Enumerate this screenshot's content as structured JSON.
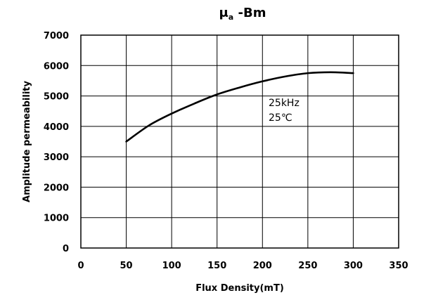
{
  "chart_data": {
    "type": "line",
    "title": "μₐ -Bm",
    "title_main": "μ",
    "title_sub": "a",
    "title_tail": " -Bm",
    "xlabel": "Flux Density(mT)",
    "ylabel": "Amplitude permeability",
    "xlim": [
      0,
      350
    ],
    "ylim": [
      0,
      7000
    ],
    "x_ticks": [
      0,
      50,
      100,
      150,
      200,
      250,
      300,
      350
    ],
    "y_ticks": [
      0,
      1000,
      2000,
      3000,
      4000,
      5000,
      6000,
      7000
    ],
    "grid": true,
    "series": [
      {
        "x": [
          50,
          75,
          100,
          125,
          150,
          175,
          200,
          225,
          250,
          275,
          300
        ],
        "y": [
          3500,
          4030,
          4420,
          4750,
          5050,
          5280,
          5480,
          5640,
          5750,
          5780,
          5750
        ]
      }
    ],
    "annotations": [
      "25kHz",
      "25℃"
    ],
    "line_color": "#000000",
    "grid_color": "#000000"
  }
}
